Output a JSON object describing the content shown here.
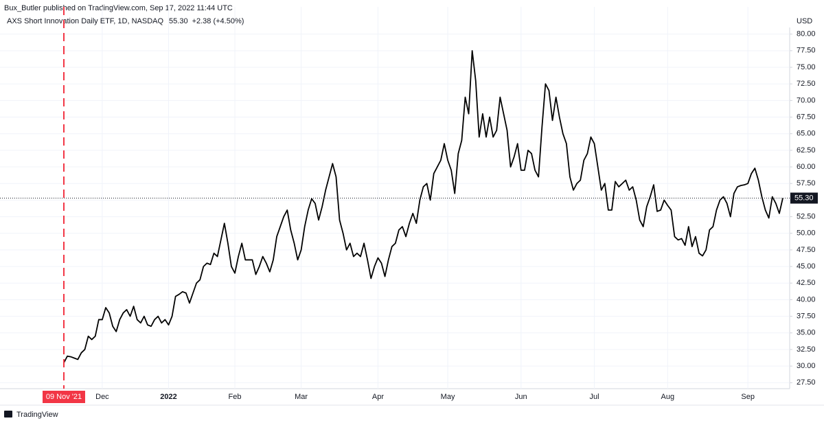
{
  "header": "Bux_Butler published on TradingView.com, Sep 17, 2022 11:44 UTC",
  "brand": "TradingView",
  "chart_data": {
    "type": "line",
    "legend_price": "55.30",
    "legend_change": "+2.38 (+4.50%)",
    "currency": "USD",
    "grid": true,
    "categories": [
      "09 Nov '21",
      null,
      null,
      null,
      null,
      null,
      null,
      null,
      null,
      null,
      null,
      "Dec",
      null,
      null,
      null,
      null,
      null,
      null,
      null,
      null,
      null,
      null,
      null,
      null,
      null,
      null,
      null,
      null,
      null,
      null,
      "2022",
      null,
      null,
      null,
      null,
      null,
      null,
      null,
      null,
      null,
      null,
      null,
      null,
      null,
      null,
      null,
      null,
      null,
      null,
      "Feb",
      null,
      null,
      null,
      null,
      null,
      null,
      null,
      null,
      null,
      null,
      null,
      null,
      null,
      null,
      null,
      null,
      null,
      null,
      "Mar",
      null,
      null,
      null,
      null,
      null,
      null,
      null,
      null,
      null,
      null,
      null,
      null,
      null,
      null,
      null,
      null,
      null,
      null,
      null,
      null,
      null,
      "Apr",
      null,
      null,
      null,
      null,
      null,
      null,
      null,
      null,
      null,
      null,
      null,
      null,
      null,
      null,
      null,
      null,
      null,
      null,
      null,
      "May",
      null,
      null,
      null,
      null,
      null,
      null,
      null,
      null,
      null,
      null,
      null,
      null,
      null,
      null,
      null,
      null,
      null,
      null,
      null,
      null,
      "Jun",
      null,
      null,
      null,
      null,
      null,
      null,
      null,
      null,
      null,
      null,
      null,
      null,
      null,
      null,
      null,
      null,
      null,
      null,
      null,
      null,
      "Jul",
      null,
      null,
      null,
      null,
      null,
      null,
      null,
      null,
      null,
      null,
      null,
      null,
      null,
      null,
      null,
      null,
      null,
      null,
      null,
      null,
      "Aug",
      null,
      null,
      null,
      null,
      null,
      null,
      null,
      null,
      null,
      null,
      null,
      null,
      null,
      null,
      null,
      null,
      null,
      null,
      null,
      null,
      null,
      null,
      "Sep",
      null,
      null,
      null,
      null,
      null,
      null,
      null,
      null,
      null,
      null
    ],
    "series": [
      {
        "name": "AXS Short Innovation Daily ETF, 1D, NASDAQ",
        "color": "#000000",
        "values": [
          30.5,
          31.5,
          31.4,
          31.2,
          31.0,
          32.0,
          32.5,
          34.5,
          34.0,
          34.5,
          37.0,
          37.0,
          38.8,
          38.0,
          36.0,
          35.2,
          37.0,
          38.0,
          38.5,
          37.5,
          39.0,
          37.0,
          36.5,
          37.5,
          36.2,
          36.0,
          37.0,
          37.5,
          36.5,
          37.0,
          36.2,
          37.5,
          40.5,
          40.8,
          41.2,
          41.0,
          39.5,
          41.0,
          42.5,
          43.0,
          45.0,
          45.5,
          45.3,
          47.0,
          46.5,
          49.0,
          51.5,
          48.5,
          45.0,
          44.0,
          46.5,
          48.5,
          46.0,
          46.0,
          46.0,
          43.8,
          45.0,
          46.5,
          45.5,
          44.2,
          46.0,
          49.5,
          51.0,
          52.5,
          53.5,
          50.5,
          48.5,
          46.0,
          47.5,
          51.0,
          53.5,
          55.2,
          54.5,
          52.0,
          54.0,
          56.5,
          58.5,
          60.5,
          58.5,
          52.0,
          50.0,
          47.5,
          48.5,
          46.5,
          47.0,
          46.5,
          48.5,
          46.0,
          43.2,
          45.0,
          46.3,
          45.5,
          43.5,
          46.0,
          48.0,
          48.5,
          50.5,
          51.0,
          49.5,
          51.5,
          53.0,
          51.5,
          55.0,
          57.0,
          57.5,
          55.0,
          59.0,
          60.0,
          61.0,
          63.5,
          61.0,
          59.5,
          56.0,
          62.0,
          64.0,
          70.5,
          68.0,
          77.5,
          73.0,
          64.5,
          68.0,
          64.5,
          67.5,
          64.5,
          65.5,
          70.5,
          68.0,
          65.5,
          60.0,
          61.5,
          63.5,
          59.5,
          59.5,
          62.5,
          62.0,
          59.5,
          58.5,
          66.0,
          72.5,
          71.5,
          67.0,
          70.5,
          67.5,
          65.0,
          63.5,
          58.5,
          56.5,
          57.5,
          58.0,
          61.0,
          62.0,
          64.5,
          63.5,
          60.0,
          56.5,
          57.5,
          53.5,
          53.5,
          57.8,
          57.0,
          57.5,
          58.0,
          56.5,
          57.0,
          55.0,
          52.0,
          51.0,
          54.0,
          55.5,
          57.3,
          53.3,
          53.5,
          55.0,
          54.2,
          53.5,
          49.5,
          49.0,
          49.2,
          48.2,
          51.0,
          48.0,
          49.5,
          47.0,
          46.6,
          47.5,
          50.5,
          51.0,
          53.5,
          55.0,
          55.5,
          54.5,
          52.5,
          56.0,
          57.0,
          57.2,
          57.3,
          57.5,
          59.0,
          59.8,
          58.0,
          55.5,
          53.5,
          52.3,
          55.5,
          54.5,
          53.0,
          55.3
        ]
      }
    ],
    "ylim": [
      26.6,
      81.0
    ],
    "yticks": [
      {
        "value": 27.5,
        "label": "27.50"
      },
      {
        "value": 30,
        "label": "30.00"
      },
      {
        "value": 32.5,
        "label": "32.50"
      },
      {
        "value": 35,
        "label": "35.00"
      },
      {
        "value": 37.5,
        "label": "37.50"
      },
      {
        "value": 40,
        "label": "40.00"
      },
      {
        "value": 42.5,
        "label": "42.50"
      },
      {
        "value": 45,
        "label": "45.00"
      },
      {
        "value": 47.5,
        "label": "47.50"
      },
      {
        "value": 50,
        "label": "50.00"
      },
      {
        "value": 52.5,
        "label": "52.50"
      },
      {
        "value": 55,
        "label": "55.00"
      },
      {
        "value": 57.5,
        "label": "57.50"
      },
      {
        "value": 60,
        "label": "60.00"
      },
      {
        "value": 62.5,
        "label": "62.50"
      },
      {
        "value": 65,
        "label": "65.00"
      },
      {
        "value": 67.5,
        "label": "67.50"
      },
      {
        "value": 70,
        "label": "70.00"
      },
      {
        "value": 72.5,
        "label": "72.50"
      },
      {
        "value": 75,
        "label": "75.00"
      },
      {
        "value": 77.5,
        "label": "77.50"
      },
      {
        "value": 80,
        "label": "80.00"
      }
    ]
  }
}
